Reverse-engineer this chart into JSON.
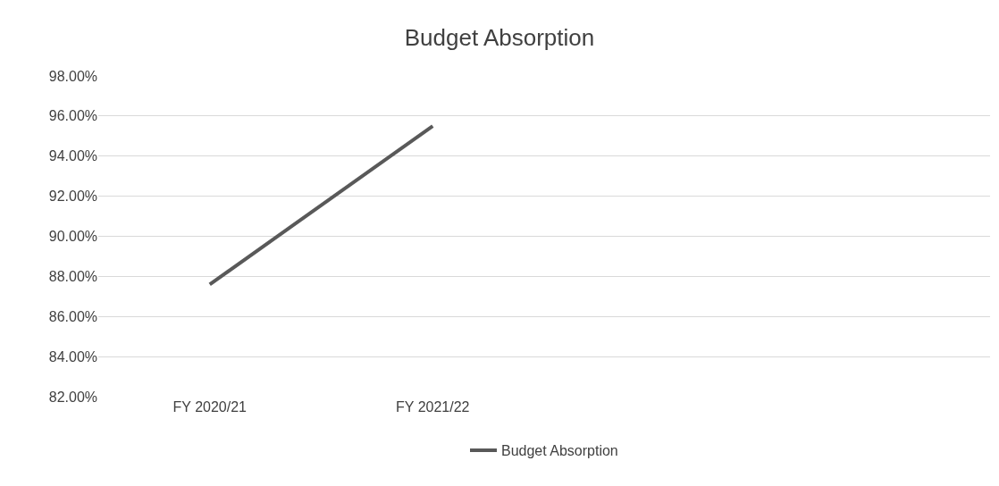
{
  "chart_data": {
    "type": "line",
    "title": "Budget Absorption",
    "categories": [
      "FY 2020/21",
      "FY 2021/22",
      null,
      null
    ],
    "series": [
      {
        "name": "Budget Absorption",
        "color": "#595959",
        "values": [
          87.6,
          95.5,
          null,
          null
        ]
      }
    ],
    "ylim": [
      82,
      98
    ],
    "yticks": [
      {
        "value": 82,
        "label": "82.00%"
      },
      {
        "value": 84,
        "label": "84.00%"
      },
      {
        "value": 86,
        "label": "86.00%"
      },
      {
        "value": 88,
        "label": "88.00%"
      },
      {
        "value": 90,
        "label": "90.00%"
      },
      {
        "value": 92,
        "label": "92.00%"
      },
      {
        "value": 94,
        "label": "94.00%"
      },
      {
        "value": 96,
        "label": "96.00%"
      },
      {
        "value": 98,
        "label": "98.00%"
      }
    ],
    "grid": "y",
    "legend": "bottom",
    "marker": "none",
    "line_style": "solid"
  }
}
